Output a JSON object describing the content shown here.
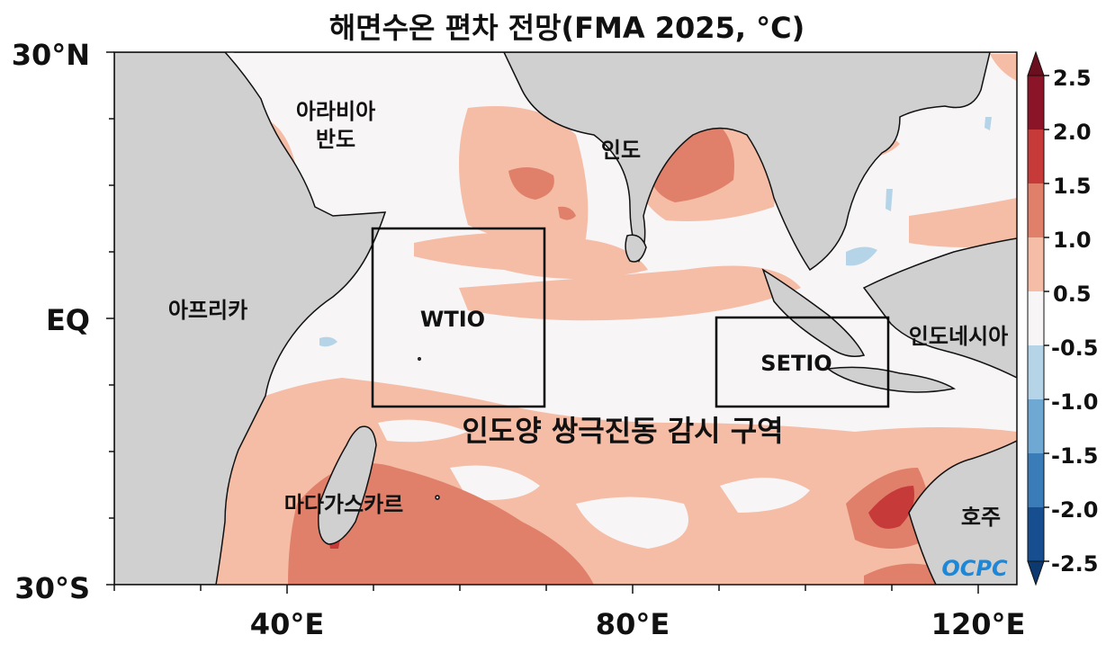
{
  "title": "해면수온 편차 전망(FMA 2025, °C)",
  "axes": {
    "y_ticks": [
      "30°N",
      "EQ",
      "30°S"
    ],
    "x_ticks": [
      "40°E",
      "80°E",
      "120°E"
    ]
  },
  "regions": {
    "arabia_line1": "아라비아",
    "arabia_line2": "반도",
    "india": "인도",
    "africa": "아프리카",
    "madagascar": "마다가스카르",
    "indonesia": "인도네시아",
    "australia": "호주",
    "iod_label": "인도양 쌍극진동 감시 구역"
  },
  "boxes": {
    "wtio": "WTIO",
    "setio": "SETIO"
  },
  "colorbar": {
    "labels": [
      "2.5",
      "2.0",
      "1.5",
      "1.0",
      "0.5",
      "-0.5",
      "-1.0",
      "-1.5",
      "-2.0",
      "-2.5"
    ],
    "colors": [
      "#8b1428",
      "#c73a3a",
      "#e0806a",
      "#f5bca6",
      "#f7f5f6",
      "#b5d4e8",
      "#6fa9d3",
      "#3a7cb8",
      "#164e8f"
    ],
    "top_arrow_color": "#6b0f1e",
    "bottom_arrow_color": "#0c3a70"
  },
  "logo": "OCPC",
  "land_color": "#d0d0d0",
  "ocean_color": "#f7f5f6"
}
